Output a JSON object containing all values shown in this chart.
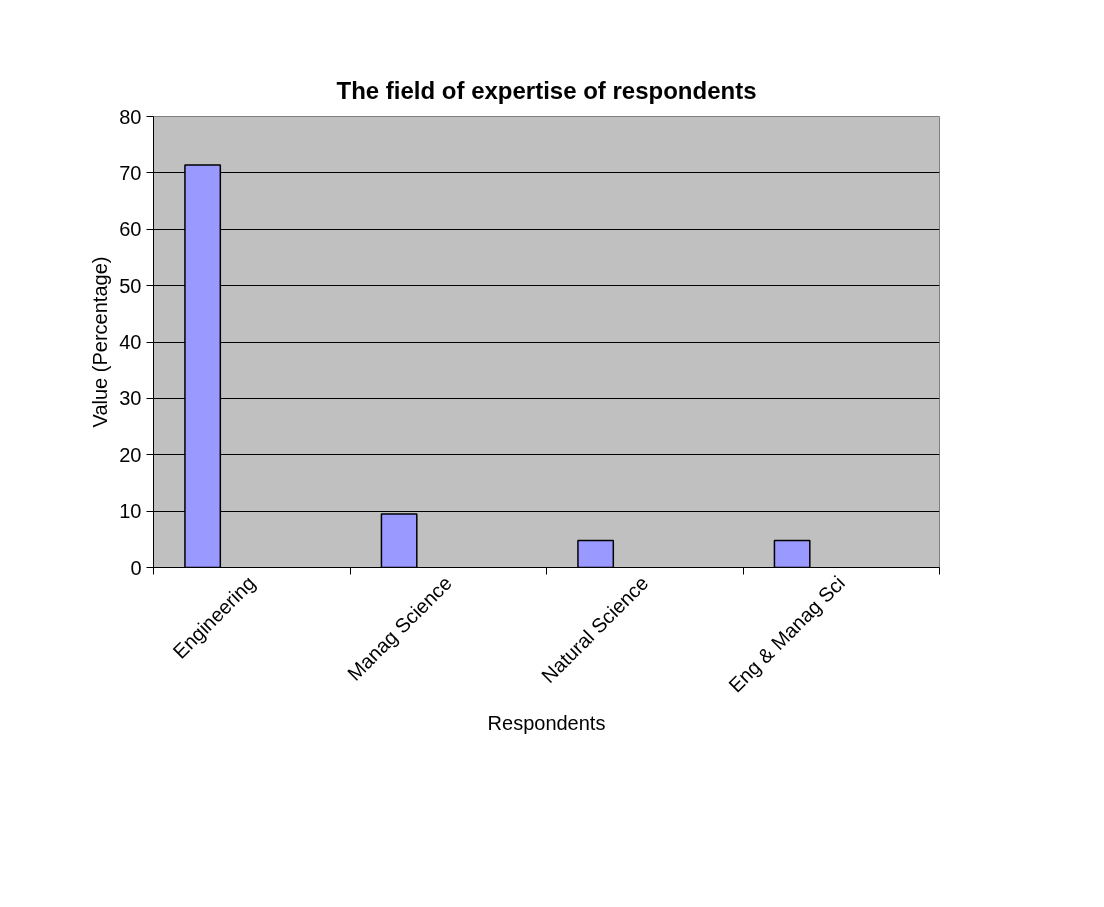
{
  "chart_data": {
    "type": "bar",
    "title": "The field of expertise of respondents",
    "xlabel": "Respondents",
    "ylabel": "Value (Percentage)",
    "categories": [
      "Engineering",
      "Manag Science",
      "Natural Science",
      "Eng & Manag Sci"
    ],
    "values": [
      71.4,
      9.5,
      4.8,
      4.8
    ],
    "color": "#9999ff",
    "ylim": [
      0,
      80
    ],
    "yticks": [
      0,
      10,
      20,
      30,
      40,
      50,
      60,
      70,
      80
    ],
    "grid": "y"
  }
}
